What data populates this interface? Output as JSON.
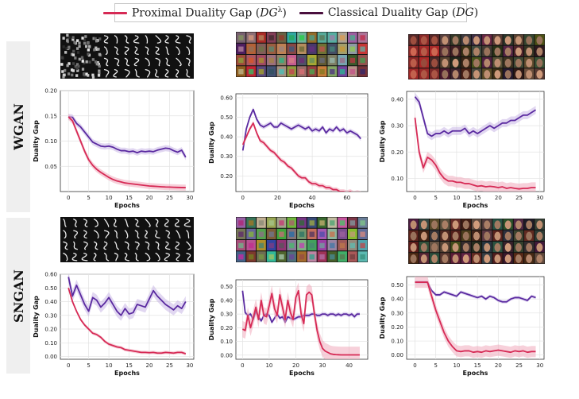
{
  "legend": {
    "proximal": {
      "label_text": "Proximal Duality Gap (",
      "label_math": "DG",
      "label_sup": "λ",
      "label_close": ")",
      "color": "#d62a55"
    },
    "classical": {
      "label_text": "Classical Duality Gap (",
      "label_math": "DG",
      "label_close": ")",
      "color": "#4a0f3e"
    }
  },
  "rows": [
    "WGAN",
    "SNGAN"
  ],
  "sample_types": [
    "mnist",
    "cifar",
    "faces",
    "mnist",
    "cifar",
    "faces"
  ],
  "colors": {
    "proximal": "#d62a55",
    "proximal_band": "#f1a9bc",
    "classical": "#5a2aa0",
    "classical_band": "#c9b6e6"
  },
  "chart_data": [
    {
      "type": "line",
      "row": "WGAN",
      "col": 0,
      "xlabel": "Epochs",
      "ylabel": "Duality Gap",
      "xlim": [
        -2,
        31
      ],
      "ylim": [
        0,
        0.2
      ],
      "xticks": [
        0,
        5,
        10,
        15,
        20,
        25,
        30
      ],
      "yticks": [
        0.05,
        0.1,
        0.15,
        0.2
      ],
      "ytick_labels": [
        "0.05",
        "0.10",
        "0.15",
        "0.20"
      ],
      "series": [
        {
          "key": "classical",
          "x": [
            0,
            1,
            2,
            3,
            4,
            5,
            6,
            7,
            8,
            9,
            10,
            11,
            12,
            13,
            14,
            15,
            16,
            17,
            18,
            19,
            20,
            21,
            22,
            23,
            24,
            25,
            26,
            27,
            28,
            29
          ],
          "values": [
            0.148,
            0.147,
            0.135,
            0.128,
            0.118,
            0.108,
            0.098,
            0.094,
            0.09,
            0.089,
            0.09,
            0.088,
            0.084,
            0.081,
            0.081,
            0.079,
            0.08,
            0.077,
            0.08,
            0.079,
            0.08,
            0.079,
            0.082,
            0.084,
            0.086,
            0.085,
            0.081,
            0.078,
            0.082,
            0.068
          ],
          "band": 0.006
        },
        {
          "key": "proximal",
          "x": [
            0,
            1,
            2,
            3,
            4,
            5,
            6,
            7,
            8,
            9,
            10,
            11,
            12,
            13,
            14,
            15,
            16,
            17,
            18,
            19,
            20,
            21,
            22,
            23,
            24,
            25,
            26,
            27,
            28,
            29
          ],
          "values": [
            0.148,
            0.14,
            0.12,
            0.1,
            0.08,
            0.063,
            0.052,
            0.044,
            0.038,
            0.033,
            0.028,
            0.024,
            0.021,
            0.019,
            0.017,
            0.016,
            0.015,
            0.014,
            0.013,
            0.012,
            0.011,
            0.0105,
            0.01,
            0.0095,
            0.009,
            0.0088,
            0.0085,
            0.0082,
            0.008,
            0.0078
          ],
          "band": 0.006
        }
      ]
    },
    {
      "type": "line",
      "row": "WGAN",
      "col": 1,
      "xlabel": "Epochs",
      "ylabel": "Duality Gap",
      "xlim": [
        -4,
        72
      ],
      "ylim": [
        0.12,
        0.62
      ],
      "xticks": [
        0,
        20,
        40,
        60
      ],
      "yticks": [
        0.2,
        0.3,
        0.4,
        0.5,
        0.6
      ],
      "ytick_labels": [
        "0.20",
        "0.30",
        "0.40",
        "0.50",
        "0.60"
      ],
      "series": [
        {
          "key": "classical",
          "x": [
            0,
            2,
            4,
            6,
            8,
            10,
            12,
            14,
            16,
            18,
            20,
            22,
            24,
            26,
            28,
            30,
            32,
            34,
            36,
            38,
            40,
            42,
            44,
            46,
            48,
            50,
            52,
            54,
            56,
            58,
            60,
            62,
            64,
            66,
            68
          ],
          "values": [
            0.33,
            0.44,
            0.5,
            0.54,
            0.49,
            0.46,
            0.45,
            0.46,
            0.47,
            0.45,
            0.45,
            0.47,
            0.46,
            0.45,
            0.44,
            0.45,
            0.46,
            0.45,
            0.44,
            0.45,
            0.43,
            0.44,
            0.43,
            0.45,
            0.42,
            0.44,
            0.43,
            0.45,
            0.43,
            0.44,
            0.42,
            0.43,
            0.42,
            0.41,
            0.39
          ],
          "band": 0.012
        },
        {
          "key": "proximal",
          "x": [
            0,
            2,
            4,
            6,
            8,
            10,
            12,
            14,
            16,
            18,
            20,
            22,
            24,
            26,
            28,
            30,
            32,
            34,
            36,
            38,
            40,
            42,
            44,
            46,
            48,
            50,
            52,
            54,
            56,
            58,
            60,
            62,
            64,
            66,
            68
          ],
          "values": [
            0.36,
            0.4,
            0.44,
            0.47,
            0.42,
            0.38,
            0.37,
            0.35,
            0.33,
            0.32,
            0.3,
            0.28,
            0.27,
            0.25,
            0.24,
            0.22,
            0.2,
            0.19,
            0.19,
            0.17,
            0.16,
            0.16,
            0.15,
            0.15,
            0.14,
            0.14,
            0.13,
            0.13,
            0.12,
            0.12,
            0.115,
            0.12,
            0.11,
            0.115,
            0.11
          ],
          "band": 0.012
        }
      ]
    },
    {
      "type": "line",
      "row": "WGAN",
      "col": 2,
      "xlabel": "Epochs",
      "ylabel": "Duality Gap",
      "xlim": [
        -2,
        31
      ],
      "ylim": [
        0.05,
        0.43
      ],
      "xticks": [
        0,
        5,
        10,
        15,
        20,
        25,
        30
      ],
      "yticks": [
        0.1,
        0.2,
        0.3,
        0.4
      ],
      "ytick_labels": [
        "0.10",
        "0.20",
        "0.30",
        "0.40"
      ],
      "series": [
        {
          "key": "classical",
          "x": [
            0,
            1,
            2,
            3,
            4,
            5,
            6,
            7,
            8,
            9,
            10,
            11,
            12,
            13,
            14,
            15,
            16,
            17,
            18,
            19,
            20,
            21,
            22,
            23,
            24,
            25,
            26,
            27,
            28,
            29
          ],
          "values": [
            0.41,
            0.39,
            0.33,
            0.27,
            0.26,
            0.27,
            0.27,
            0.28,
            0.27,
            0.28,
            0.28,
            0.28,
            0.29,
            0.27,
            0.28,
            0.27,
            0.28,
            0.29,
            0.3,
            0.29,
            0.3,
            0.31,
            0.31,
            0.32,
            0.32,
            0.33,
            0.34,
            0.34,
            0.35,
            0.36
          ],
          "band": 0.015
        },
        {
          "key": "proximal",
          "x": [
            0,
            1,
            2,
            3,
            4,
            5,
            6,
            7,
            8,
            9,
            10,
            11,
            12,
            13,
            14,
            15,
            16,
            17,
            18,
            19,
            20,
            21,
            22,
            23,
            24,
            25,
            26,
            27,
            28,
            29
          ],
          "values": [
            0.33,
            0.2,
            0.14,
            0.18,
            0.17,
            0.15,
            0.12,
            0.1,
            0.09,
            0.09,
            0.085,
            0.085,
            0.08,
            0.08,
            0.075,
            0.07,
            0.072,
            0.068,
            0.07,
            0.068,
            0.065,
            0.068,
            0.062,
            0.065,
            0.062,
            0.06,
            0.062,
            0.062,
            0.065,
            0.065
          ],
          "band": 0.02
        }
      ]
    },
    {
      "type": "line",
      "row": "SNGAN",
      "col": 0,
      "xlabel": "Epochs",
      "ylabel": "Duality Gap",
      "xlim": [
        -2,
        31
      ],
      "ylim": [
        -0.02,
        0.6
      ],
      "xticks": [
        0,
        5,
        10,
        15,
        20,
        25,
        30
      ],
      "yticks": [
        0,
        0.1,
        0.2,
        0.3,
        0.4,
        0.5,
        0.6
      ],
      "ytick_labels": [
        "0.00",
        "0.10",
        "0.20",
        "0.30",
        "0.40",
        "0.50",
        "0.60"
      ],
      "series": [
        {
          "key": "classical",
          "x": [
            0,
            1,
            2,
            3,
            4,
            5,
            6,
            7,
            8,
            9,
            10,
            11,
            12,
            13,
            14,
            15,
            16,
            17,
            18,
            19,
            20,
            21,
            22,
            23,
            24,
            25,
            26,
            27,
            28,
            29
          ],
          "values": [
            0.58,
            0.44,
            0.52,
            0.45,
            0.38,
            0.33,
            0.43,
            0.41,
            0.36,
            0.39,
            0.43,
            0.38,
            0.33,
            0.3,
            0.35,
            0.31,
            0.32,
            0.38,
            0.37,
            0.36,
            0.42,
            0.48,
            0.44,
            0.41,
            0.38,
            0.36,
            0.34,
            0.37,
            0.35,
            0.4
          ],
          "band": 0.04
        },
        {
          "key": "proximal",
          "x": [
            0,
            1,
            2,
            3,
            4,
            5,
            6,
            7,
            8,
            9,
            10,
            11,
            12,
            13,
            14,
            15,
            16,
            17,
            18,
            19,
            20,
            21,
            22,
            23,
            24,
            25,
            26,
            27,
            28,
            29
          ],
          "values": [
            0.5,
            0.4,
            0.33,
            0.27,
            0.23,
            0.2,
            0.17,
            0.16,
            0.14,
            0.11,
            0.09,
            0.08,
            0.07,
            0.065,
            0.05,
            0.045,
            0.04,
            0.035,
            0.03,
            0.03,
            0.028,
            0.03,
            0.025,
            0.025,
            0.03,
            0.028,
            0.025,
            0.03,
            0.03,
            0.02
          ],
          "band": 0.012
        }
      ]
    },
    {
      "type": "line",
      "row": "SNGAN",
      "col": 1,
      "xlabel": "Epochs",
      "ylabel": "Duality Gap",
      "xlim": [
        -2.5,
        47
      ],
      "ylim": [
        -0.03,
        0.55
      ],
      "xticks": [
        0,
        10,
        20,
        30,
        40
      ],
      "yticks": [
        0,
        0.1,
        0.2,
        0.3,
        0.4,
        0.5
      ],
      "ytick_labels": [
        "0.00",
        "0.10",
        "0.20",
        "0.30",
        "0.40",
        "0.50"
      ],
      "series": [
        {
          "key": "classical",
          "x": [
            0,
            1,
            2,
            3,
            4,
            5,
            6,
            7,
            8,
            9,
            10,
            11,
            12,
            13,
            14,
            15,
            16,
            17,
            18,
            19,
            20,
            21,
            22,
            23,
            24,
            25,
            26,
            27,
            28,
            29,
            30,
            31,
            32,
            33,
            34,
            35,
            36,
            37,
            38,
            39,
            40,
            41,
            42,
            43,
            44
          ],
          "values": [
            0.47,
            0.31,
            0.29,
            0.3,
            0.26,
            0.32,
            0.28,
            0.25,
            0.29,
            0.3,
            0.29,
            0.24,
            0.27,
            0.3,
            0.27,
            0.28,
            0.24,
            0.28,
            0.27,
            0.26,
            0.27,
            0.28,
            0.28,
            0.29,
            0.29,
            0.29,
            0.3,
            0.3,
            0.29,
            0.29,
            0.3,
            0.3,
            0.29,
            0.3,
            0.3,
            0.29,
            0.3,
            0.29,
            0.3,
            0.3,
            0.29,
            0.3,
            0.28,
            0.3,
            0.3
          ],
          "band": 0.015
        },
        {
          "key": "proximal",
          "x": [
            0,
            1,
            2,
            3,
            4,
            5,
            6,
            7,
            8,
            9,
            10,
            11,
            12,
            13,
            14,
            15,
            16,
            17,
            18,
            19,
            20,
            21,
            22,
            23,
            24,
            25,
            26,
            27,
            28,
            29,
            30,
            31,
            32,
            33,
            34,
            35,
            36,
            37,
            38,
            39,
            40,
            41,
            42,
            43,
            44
          ],
          "values": [
            0.19,
            0.18,
            0.29,
            0.2,
            0.27,
            0.35,
            0.26,
            0.4,
            0.29,
            0.28,
            0.36,
            0.45,
            0.34,
            0.29,
            0.44,
            0.35,
            0.26,
            0.4,
            0.31,
            0.26,
            0.42,
            0.47,
            0.3,
            0.23,
            0.44,
            0.46,
            0.44,
            0.3,
            0.18,
            0.1,
            0.05,
            0.03,
            0.02,
            0.01,
            0.006,
            0.004,
            0.003,
            0.002,
            0.002,
            0.002,
            0.002,
            0.002,
            0.002,
            0.002,
            0.002
          ],
          "band": 0.06
        }
      ]
    },
    {
      "type": "line",
      "row": "SNGAN",
      "col": 2,
      "xlabel": "Epochs",
      "ylabel": "Duality Gap",
      "xlim": [
        -2,
        31
      ],
      "ylim": [
        -0.03,
        0.56
      ],
      "xticks": [
        0,
        5,
        10,
        15,
        20,
        25,
        30
      ],
      "yticks": [
        0,
        0.1,
        0.2,
        0.3,
        0.4,
        0.5
      ],
      "ytick_labels": [
        "0.00",
        "0.10",
        "0.20",
        "0.30",
        "0.40",
        "0.50"
      ],
      "series": [
        {
          "key": "classical",
          "x": [
            0,
            1,
            2,
            3,
            4,
            5,
            6,
            7,
            8,
            9,
            10,
            11,
            12,
            13,
            14,
            15,
            16,
            17,
            18,
            19,
            20,
            21,
            22,
            23,
            24,
            25,
            26,
            27,
            28,
            29
          ],
          "values": [
            0.52,
            0.52,
            0.52,
            0.52,
            0.46,
            0.43,
            0.43,
            0.45,
            0.44,
            0.43,
            0.42,
            0.45,
            0.44,
            0.43,
            0.42,
            0.41,
            0.42,
            0.4,
            0.42,
            0.41,
            0.39,
            0.38,
            0.38,
            0.4,
            0.41,
            0.41,
            0.4,
            0.39,
            0.42,
            0.41
          ],
          "band": 0.012
        },
        {
          "key": "proximal",
          "x": [
            0,
            1,
            2,
            3,
            4,
            5,
            6,
            7,
            8,
            9,
            10,
            11,
            12,
            13,
            14,
            15,
            16,
            17,
            18,
            19,
            20,
            21,
            22,
            23,
            24,
            25,
            26,
            27,
            28,
            29
          ],
          "values": [
            0.52,
            0.52,
            0.52,
            0.52,
            0.42,
            0.32,
            0.24,
            0.16,
            0.1,
            0.06,
            0.03,
            0.025,
            0.03,
            0.03,
            0.02,
            0.025,
            0.02,
            0.03,
            0.025,
            0.03,
            0.035,
            0.03,
            0.025,
            0.02,
            0.03,
            0.025,
            0.03,
            0.02,
            0.025,
            0.025
          ],
          "band": 0.04
        }
      ]
    }
  ]
}
